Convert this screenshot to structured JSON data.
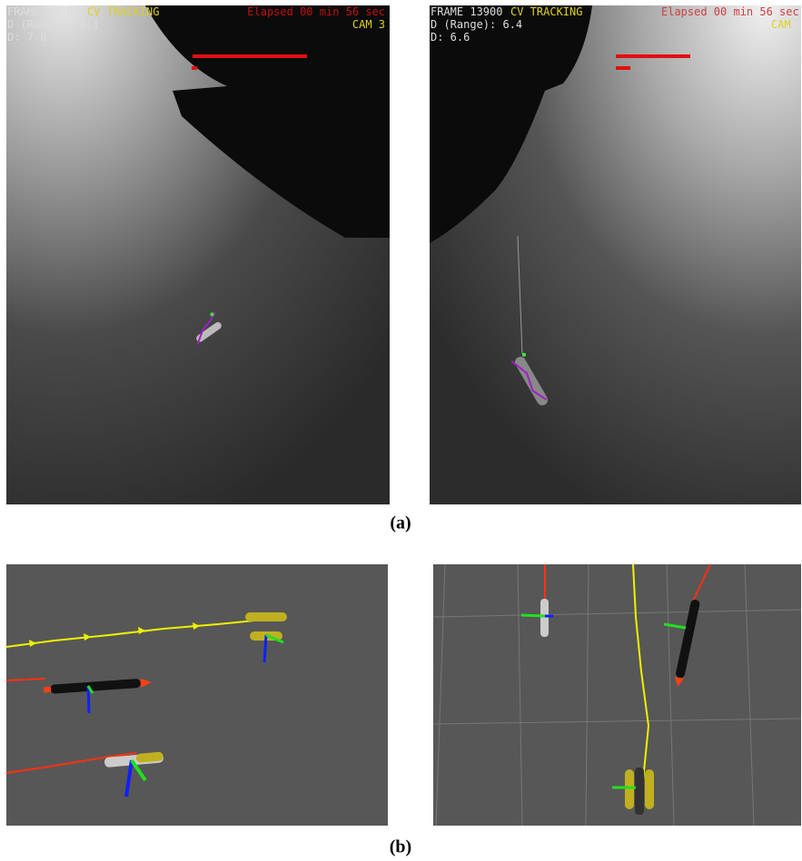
{
  "panels": [
    {
      "frame": "FRAME 13900",
      "mode": "CV TRACKING",
      "elapsed": "Elapsed 00 min 56 sec",
      "range": "D (Range): 8.1",
      "depth": "D: 7.8",
      "camera": "CAM 3"
    },
    {
      "frame": "FRAME 13900",
      "mode": "CV TRACKING",
      "elapsed": "Elapsed 00 min 56 sec",
      "range": "D (Range): 6.4",
      "depth": "D: 6.6",
      "camera": "CAM"
    }
  ],
  "captions": [
    "(a)",
    "(b)"
  ]
}
